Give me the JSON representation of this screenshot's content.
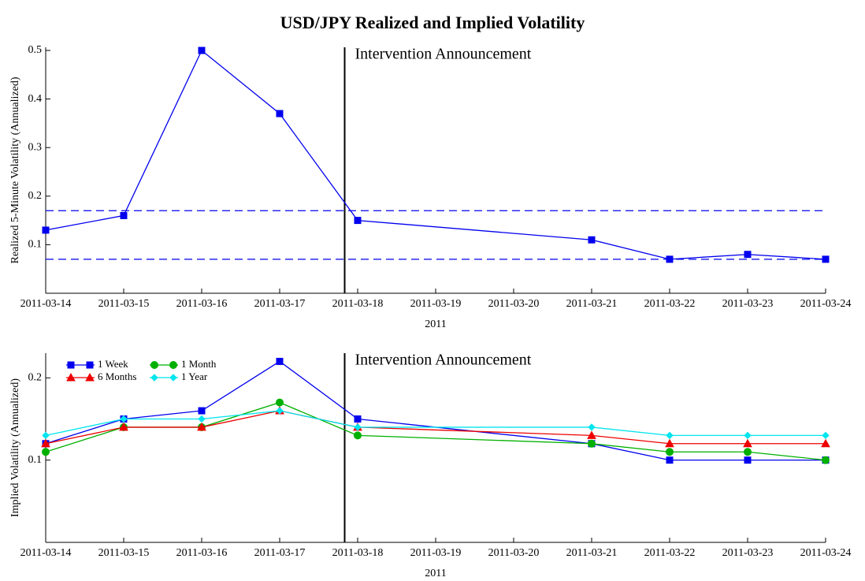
{
  "chart_data": [
    {
      "type": "line",
      "title": "USD/JPY Realized and Implied Volatility",
      "x": [
        "2011-03-14",
        "2011-03-15",
        "2011-03-16",
        "2011-03-17",
        "2011-03-18",
        "2011-03-21",
        "2011-03-22",
        "2011-03-23",
        "2011-03-24"
      ],
      "xlim": [
        "2011-03-14",
        "2011-03-24"
      ],
      "xticks": [
        "2011-03-14",
        "2011-03-15",
        "2011-03-16",
        "2011-03-17",
        "2011-03-18",
        "2011-03-19",
        "2011-03-20",
        "2011-03-21",
        "2011-03-22",
        "2011-03-23",
        "2011-03-24"
      ],
      "xlabel": "2011",
      "ylabel": "Realized 5-Minute Volatility (Annualized)",
      "ylim": [
        0,
        0.5
      ],
      "yticks": [
        0.1,
        0.2,
        0.3,
        0.4,
        0.5
      ],
      "series": [
        {
          "color": "#0000ee",
          "marker": "square",
          "values": [
            0.13,
            0.16,
            0.5,
            0.37,
            0.15,
            0.11,
            0.07,
            0.08,
            0.07
          ]
        }
      ],
      "hlines": [
        0.17,
        0.07
      ],
      "hline_color": "#0000ee",
      "annotation": {
        "text": "Intervention Announcement",
        "x": "2011-03-17T20:00"
      }
    },
    {
      "type": "line",
      "x": [
        "2011-03-14",
        "2011-03-15",
        "2011-03-16",
        "2011-03-17",
        "2011-03-18",
        "2011-03-21",
        "2011-03-22",
        "2011-03-23",
        "2011-03-24"
      ],
      "xlim": [
        "2011-03-14",
        "2011-03-24"
      ],
      "xticks": [
        "2011-03-14",
        "2011-03-15",
        "2011-03-16",
        "2011-03-17",
        "2011-03-18",
        "2011-03-19",
        "2011-03-20",
        "2011-03-21",
        "2011-03-22",
        "2011-03-23",
        "2011-03-24"
      ],
      "xlabel": "2011",
      "ylabel": "Implied Volatility (Annualized)",
      "ylim": [
        0,
        0.23
      ],
      "yticks": [
        0.1,
        0.2
      ],
      "legend": "upper left",
      "series": [
        {
          "name": "1 Week",
          "color": "#0000ee",
          "marker": "square",
          "values": [
            0.12,
            0.15,
            0.16,
            0.22,
            0.15,
            0.12,
            0.1,
            0.1,
            0.1
          ]
        },
        {
          "name": "1 Month",
          "color": "#00b000",
          "marker": "circle",
          "values": [
            0.11,
            0.14,
            0.14,
            0.17,
            0.13,
            0.12,
            0.11,
            0.11,
            0.1
          ]
        },
        {
          "name": "6 Months",
          "color": "#ee0000",
          "marker": "triangle",
          "values": [
            0.12,
            0.14,
            0.14,
            0.16,
            0.14,
            0.13,
            0.12,
            0.12,
            0.12
          ]
        },
        {
          "name": "1 Year",
          "color": "#00e5ee",
          "marker": "diamond",
          "values": [
            0.13,
            0.15,
            0.15,
            0.16,
            0.14,
            0.14,
            0.13,
            0.13,
            0.13
          ]
        }
      ],
      "annotation": {
        "text": "Intervention Announcement",
        "x": "2011-03-17T20:00"
      }
    }
  ]
}
